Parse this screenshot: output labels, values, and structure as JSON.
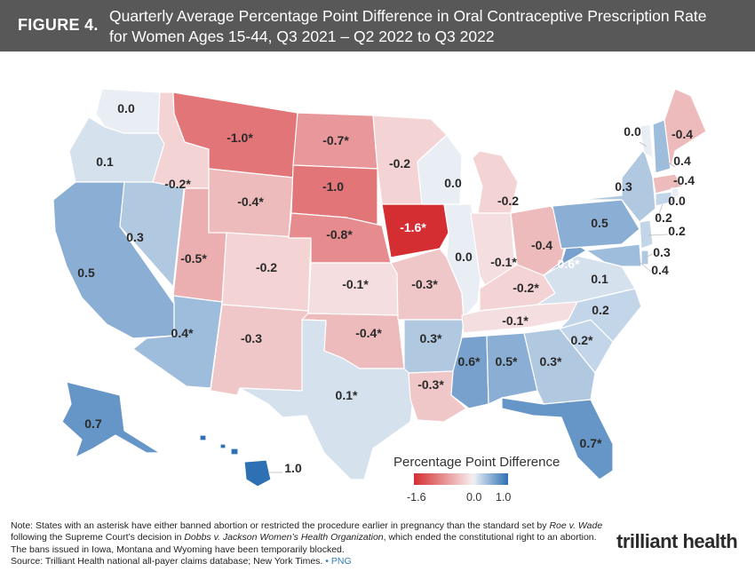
{
  "header": {
    "figure_label": "FIGURE 4.",
    "title_line1": "Quarterly Average Percentage Point Difference in Oral Contraceptive Prescription Rate",
    "title_line2": "for Women Ages 15-44, Q3 2021 – Q2 2022 to Q3 2022"
  },
  "legend": {
    "title": "Percentage Point Difference",
    "min_label": "-1.6",
    "mid_label": "0.0",
    "max_label": "1.0",
    "min_color": "#d42e33",
    "max_color": "#2d70b3"
  },
  "map_data": {
    "type": "choropleth",
    "region": "United States",
    "states": [
      {
        "state": "WA",
        "value": "0.0"
      },
      {
        "state": "OR",
        "value": "0.1"
      },
      {
        "state": "CA",
        "value": "0.5"
      },
      {
        "state": "NV",
        "value": "0.3"
      },
      {
        "state": "ID",
        "value": "-0.2*"
      },
      {
        "state": "MT",
        "value": "-1.0*"
      },
      {
        "state": "WY",
        "value": "-0.4*"
      },
      {
        "state": "UT",
        "value": "-0.5*"
      },
      {
        "state": "AZ",
        "value": "0.4*"
      },
      {
        "state": "CO",
        "value": "-0.2"
      },
      {
        "state": "NM",
        "value": "-0.3"
      },
      {
        "state": "ND",
        "value": "-0.7*"
      },
      {
        "state": "SD",
        "value": "-1.0"
      },
      {
        "state": "NE",
        "value": "-0.8*"
      },
      {
        "state": "KS",
        "value": "-0.1*"
      },
      {
        "state": "OK",
        "value": "-0.4*"
      },
      {
        "state": "TX",
        "value": "0.1*"
      },
      {
        "state": "MN",
        "value": "-0.2"
      },
      {
        "state": "IA",
        "value": "-1.6*"
      },
      {
        "state": "MO",
        "value": "-0.3*"
      },
      {
        "state": "AR",
        "value": "0.3*"
      },
      {
        "state": "LA",
        "value": "-0.3*"
      },
      {
        "state": "WI",
        "value": "0.0"
      },
      {
        "state": "IL",
        "value": "0.0"
      },
      {
        "state": "MI",
        "value": "-0.2"
      },
      {
        "state": "IN",
        "value": "-0.1*"
      },
      {
        "state": "OH",
        "value": "-0.4"
      },
      {
        "state": "KY",
        "value": "-0.2*"
      },
      {
        "state": "TN",
        "value": "-0.1*"
      },
      {
        "state": "MS",
        "value": "0.6*"
      },
      {
        "state": "AL",
        "value": "0.5*"
      },
      {
        "state": "GA",
        "value": "0.3*"
      },
      {
        "state": "FL",
        "value": "0.7*"
      },
      {
        "state": "SC",
        "value": "0.2*"
      },
      {
        "state": "NC",
        "value": "0.2"
      },
      {
        "state": "VA",
        "value": "0.1"
      },
      {
        "state": "WV",
        "value": "0.6*"
      },
      {
        "state": "PA",
        "value": "0.5"
      },
      {
        "state": "NY",
        "value": "0.3"
      },
      {
        "state": "VT",
        "value": "0.0"
      },
      {
        "state": "NH",
        "value": "0.4"
      },
      {
        "state": "ME",
        "value": "-0.4"
      },
      {
        "state": "MA",
        "value": "-0.4"
      },
      {
        "state": "RI",
        "value": "0.0"
      },
      {
        "state": "CT",
        "value": "0.2"
      },
      {
        "state": "NJ",
        "value": "0.2"
      },
      {
        "state": "DE",
        "value": "0.3"
      },
      {
        "state": "MD",
        "value": "0.4"
      },
      {
        "state": "AK",
        "value": "0.7"
      },
      {
        "state": "HI",
        "value": "1.0"
      }
    ]
  },
  "notes": {
    "line1_a": "Note: States with an asterisk have either banned abortion or restricted the procedure earlier in pregnancy than the standard set by ",
    "line1_b": "Roe v. Wade",
    "line2_a": "following the Supreme Court’s decision in ",
    "line2_b": "Dobbs v. Jackson Women’s Health Organization",
    "line2_c": ", which ended the constitutional right to an abortion.",
    "line3": "The bans issued in Iowa, Montana and Wyoming have been temporarily blocked.",
    "line4": "Source: Trilliant Health national all-payer claims database; New York Times.",
    "bullet": "•",
    "png_link": "PNG"
  },
  "logo": {
    "text": "trilliant health"
  }
}
